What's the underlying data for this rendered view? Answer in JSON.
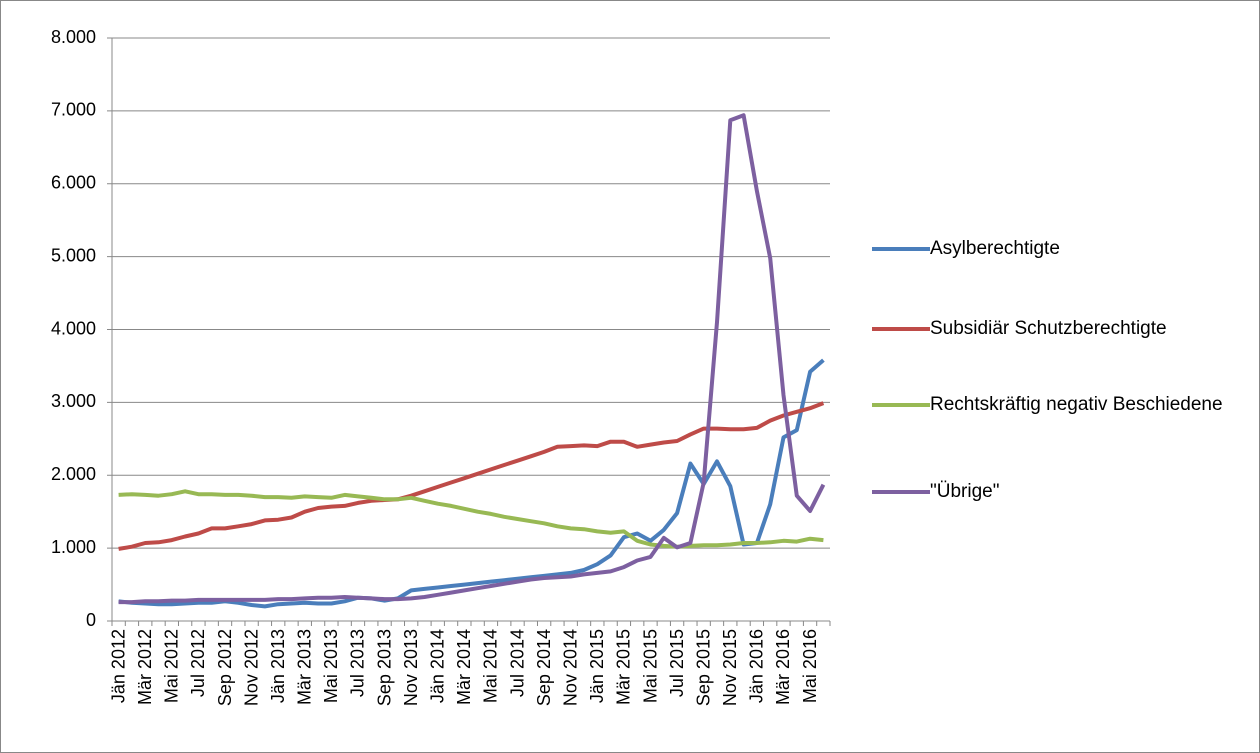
{
  "chart_data": {
    "type": "line",
    "categories": [
      "Jän 2012",
      null,
      "Mär 2012",
      null,
      "Mai 2012",
      null,
      "Jul 2012",
      null,
      "Sep 2012",
      null,
      "Nov 2012",
      null,
      "Jän 2013",
      null,
      "Mär 2013",
      null,
      "Mai 2013",
      null,
      "Jul 2013",
      null,
      "Sep 2013",
      null,
      "Nov 2013",
      null,
      "Jän 2014",
      null,
      "Mär 2014",
      null,
      "Mai 2014",
      null,
      "Jul 2014",
      null,
      "Sep 2014",
      null,
      "Nov 2014",
      null,
      "Jän 2015",
      null,
      "Mär 2015",
      null,
      "Mai 2015",
      null,
      "Jul 2015",
      null,
      "Sep 2015",
      null,
      "Nov 2015",
      null,
      "Jän 2016",
      null,
      "Mär 2016",
      null,
      "Mai 2016",
      null
    ],
    "series": [
      {
        "name": "Asylberechtigte",
        "color": "#4a7ebb",
        "values": [
          270,
          250,
          240,
          230,
          230,
          240,
          250,
          250,
          270,
          250,
          220,
          200,
          230,
          240,
          250,
          240,
          240,
          270,
          320,
          310,
          280,
          310,
          420,
          440,
          460,
          480,
          500,
          520,
          540,
          560,
          580,
          600,
          620,
          640,
          660,
          700,
          780,
          900,
          1150,
          1200,
          1100,
          1250,
          1480,
          2160,
          1880,
          2190,
          1850,
          1050,
          1070,
          1600,
          2520,
          2620,
          3420,
          3580
        ]
      },
      {
        "name": "Subsidiär Schutzberechtigte",
        "color": "#be4b48",
        "values": [
          990,
          1020,
          1070,
          1080,
          1110,
          1160,
          1200,
          1270,
          1270,
          1300,
          1330,
          1380,
          1390,
          1420,
          1500,
          1550,
          1570,
          1580,
          1620,
          1650,
          1660,
          1670,
          1720,
          1780,
          1840,
          1900,
          1960,
          2020,
          2080,
          2140,
          2200,
          2260,
          2320,
          2390,
          2400,
          2410,
          2400,
          2460,
          2460,
          2390,
          2420,
          2450,
          2470,
          2560,
          2640,
          2640,
          2630,
          2630,
          2650,
          2750,
          2820,
          2870,
          2920,
          2990
        ]
      },
      {
        "name": "Rechtskräftig negativ Beschiedene",
        "color": "#98b954",
        "values": [
          1730,
          1740,
          1730,
          1720,
          1740,
          1780,
          1740,
          1740,
          1730,
          1730,
          1720,
          1700,
          1700,
          1690,
          1710,
          1700,
          1690,
          1730,
          1710,
          1690,
          1670,
          1670,
          1690,
          1650,
          1610,
          1580,
          1540,
          1500,
          1470,
          1430,
          1400,
          1370,
          1340,
          1300,
          1270,
          1260,
          1230,
          1210,
          1230,
          1100,
          1050,
          1030,
          1020,
          1030,
          1040,
          1040,
          1050,
          1070,
          1070,
          1080,
          1100,
          1090,
          1130,
          1110
        ]
      },
      {
        "name": "\"Übrige\"",
        "color": "#7d60a0",
        "values": [
          260,
          260,
          270,
          270,
          280,
          280,
          290,
          290,
          290,
          290,
          290,
          290,
          300,
          300,
          310,
          320,
          320,
          330,
          320,
          310,
          300,
          300,
          310,
          330,
          360,
          390,
          420,
          450,
          480,
          510,
          540,
          570,
          590,
          600,
          610,
          640,
          660,
          680,
          740,
          830,
          880,
          1140,
          1010,
          1070,
          1900,
          4100,
          6870,
          6940,
          5900,
          4980,
          3100,
          1720,
          1510,
          1870
        ]
      }
    ],
    "ylim": [
      0,
      8000
    ],
    "yticks": [
      0,
      {
        "value": 1000,
        "label": "1.000"
      },
      {
        "value": 2000,
        "label": "2.000"
      },
      {
        "value": 3000,
        "label": "3.000"
      },
      {
        "value": 4000,
        "label": "4.000"
      },
      {
        "value": 5000,
        "label": "5.000"
      },
      {
        "value": 6000,
        "label": "6.000"
      },
      {
        "value": 7000,
        "label": "7.000"
      },
      {
        "value": 8000,
        "label": "8.000"
      }
    ],
    "grid": true,
    "legend": "right"
  }
}
